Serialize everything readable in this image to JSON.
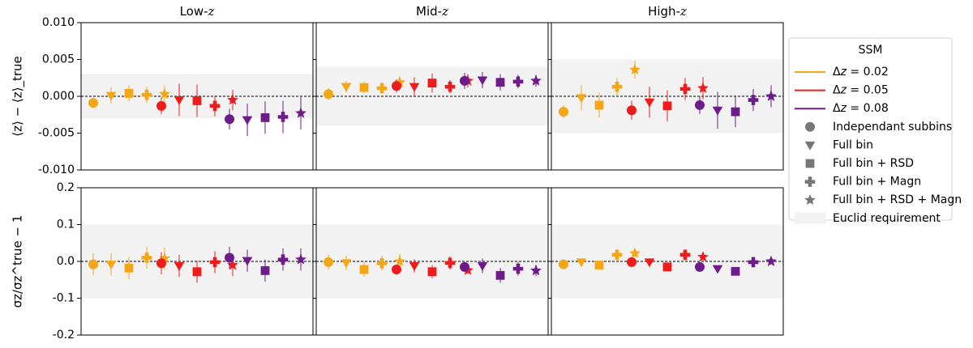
{
  "chart_data": {
    "type": "scatter",
    "panels": [
      {
        "column_title": "Low-z",
        "row": "mean"
      },
      {
        "column_title": "Mid-z",
        "row": "mean"
      },
      {
        "column_title": "High-z",
        "row": "mean"
      },
      {
        "column_title": "Low-z",
        "row": "sigma"
      },
      {
        "column_title": "Mid-z",
        "row": "sigma"
      },
      {
        "column_title": "High-z",
        "row": "sigma"
      }
    ],
    "column_titles": [
      "Low-z",
      "Mid-z",
      "High-z"
    ],
    "rows": [
      {
        "key": "mean",
        "ylabel": "⟨z⟩ − ⟨z⟩_true",
        "ylim": [
          -0.01,
          0.01
        ],
        "yticks": [
          "0.010",
          "0.005",
          "0.000",
          "-0.005",
          "-0.010"
        ],
        "ytick_values": [
          0.01,
          0.005,
          0.0,
          -0.005,
          -0.01
        ],
        "requirement": [
          [
            -0.003,
            0.003
          ],
          [
            -0.004,
            0.004
          ],
          [
            -0.005,
            0.005
          ]
        ]
      },
      {
        "key": "sigma",
        "ylabel": "σz/σz^true − 1",
        "ylim": [
          -0.2,
          0.2
        ],
        "yticks": [
          "0.2",
          "0.1",
          "0.0",
          "-0.1",
          "-0.2"
        ],
        "ytick_values": [
          0.2,
          0.1,
          0.0,
          -0.1,
          -0.2
        ],
        "requirement": [
          [
            -0.1,
            0.1
          ],
          [
            -0.1,
            0.1
          ],
          [
            -0.1,
            0.1
          ]
        ]
      }
    ],
    "methods": [
      "Independant subbins",
      "Full bin",
      "Full bin + RSD",
      "Full bin + Magn",
      "Full bin + RSD + Magn"
    ],
    "series": [
      {
        "name": "Δz = 0.02",
        "color": "#f5a615",
        "mean": [
          [
            [
              -0.0009,
              0.0007
            ],
            [
              0.0001,
              0.0011
            ],
            [
              0.0004,
              0.0011
            ],
            [
              0.0002,
              0.0011
            ],
            [
              0.0003,
              0.0011
            ]
          ],
          [
            [
              0.0003,
              0.0008
            ],
            [
              0.0013,
              0.0008
            ],
            [
              0.0012,
              0.0008
            ],
            [
              0.0011,
              0.0008
            ],
            [
              0.0019,
              0.0008
            ]
          ],
          [
            [
              -0.0021,
              0.0009
            ],
            [
              -0.0002,
              0.0017
            ],
            [
              -0.0012,
              0.0017
            ],
            [
              0.0013,
              0.0012
            ],
            [
              0.0036,
              0.0012
            ]
          ]
        ],
        "sigma": [
          [
            [
              -0.008,
              0.03
            ],
            [
              -0.008,
              0.03
            ],
            [
              -0.018,
              0.03
            ],
            [
              0.01,
              0.03
            ],
            [
              0.008,
              0.03
            ]
          ],
          [
            [
              -0.002,
              0.02
            ],
            [
              -0.004,
              0.02
            ],
            [
              -0.022,
              0.02
            ],
            [
              -0.005,
              0.02
            ],
            [
              0.0,
              0.02
            ]
          ],
          [
            [
              -0.008,
              0.008
            ],
            [
              -0.002,
              0.008
            ],
            [
              -0.01,
              0.008
            ],
            [
              0.018,
              0.01
            ],
            [
              0.022,
              0.008
            ]
          ]
        ]
      },
      {
        "name": "Δz = 0.05",
        "color": "#ee1c1c",
        "mean": [
          [
            [
              -0.0013,
              0.0011
            ],
            [
              -0.0005,
              0.0022
            ],
            [
              -0.0006,
              0.0022
            ],
            [
              -0.0013,
              0.0014
            ],
            [
              -0.0005,
              0.0014
            ]
          ],
          [
            [
              0.0014,
              0.0009
            ],
            [
              0.0013,
              0.0013
            ],
            [
              0.0018,
              0.0013
            ],
            [
              0.0013,
              0.0009
            ],
            [
              0.0021,
              0.0009
            ]
          ],
          [
            [
              -0.0019,
              0.0013
            ],
            [
              -0.0008,
              0.0021
            ],
            [
              -0.0013,
              0.0021
            ],
            [
              0.001,
              0.0015
            ],
            [
              0.0011,
              0.0015
            ]
          ]
        ],
        "sigma": [
          [
            [
              -0.005,
              0.03
            ],
            [
              -0.012,
              0.03
            ],
            [
              -0.028,
              0.03
            ],
            [
              -0.002,
              0.03
            ],
            [
              -0.01,
              0.03
            ]
          ],
          [
            [
              -0.022,
              0.008
            ],
            [
              -0.012,
              0.018
            ],
            [
              -0.028,
              0.018
            ],
            [
              -0.004,
              0.018
            ],
            [
              -0.024,
              0.01
            ]
          ],
          [
            [
              -0.002,
              0.005
            ],
            [
              -0.002,
              0.005
            ],
            [
              -0.015,
              0.005
            ],
            [
              0.018,
              0.008
            ],
            [
              0.012,
              0.008
            ]
          ]
        ]
      },
      {
        "name": "Δz = 0.08",
        "color": "#6e1c8a",
        "mean": [
          [
            [
              -0.0031,
              0.0014
            ],
            [
              -0.0032,
              0.0022
            ],
            [
              -0.0029,
              0.0022
            ],
            [
              -0.0028,
              0.0022
            ],
            [
              -0.0023,
              0.0022
            ]
          ],
          [
            [
              0.0021,
              0.0011
            ],
            [
              0.0022,
              0.0011
            ],
            [
              0.0019,
              0.0011
            ],
            [
              0.002,
              0.0009
            ],
            [
              0.0021,
              0.0008
            ]
          ],
          [
            [
              -0.0012,
              0.0012
            ],
            [
              -0.0019,
              0.0025
            ],
            [
              -0.0021,
              0.0021
            ],
            [
              -0.0005,
              0.0015
            ],
            [
              0.0,
              0.0015
            ]
          ]
        ],
        "sigma": [
          [
            [
              0.01,
              0.03
            ],
            [
              0.002,
              0.03
            ],
            [
              -0.025,
              0.03
            ],
            [
              0.005,
              0.03
            ],
            [
              0.005,
              0.03
            ]
          ],
          [
            [
              -0.015,
              0.01
            ],
            [
              -0.012,
              0.02
            ],
            [
              -0.038,
              0.02
            ],
            [
              -0.02,
              0.018
            ],
            [
              -0.025,
              0.015
            ]
          ],
          [
            [
              -0.015,
              0.005
            ],
            [
              -0.02,
              0.005
            ],
            [
              -0.027,
              0.005
            ],
            [
              -0.002,
              0.008
            ],
            [
              0.0,
              0.008
            ]
          ]
        ]
      }
    ],
    "legend": {
      "title": "SSM",
      "position": "right",
      "entries": [
        {
          "label": "Δz = 0.02",
          "kind": "line",
          "color": "#f5a615"
        },
        {
          "label": "Δz = 0.05",
          "kind": "line",
          "color": "#ee1c1c"
        },
        {
          "label": "Δz = 0.08",
          "kind": "line",
          "color": "#6e1c8a"
        },
        {
          "label": "Independant subbins",
          "kind": "marker",
          "marker": "circle"
        },
        {
          "label": "Full bin",
          "kind": "marker",
          "marker": "triangle-down"
        },
        {
          "label": "Full bin + RSD",
          "kind": "marker",
          "marker": "square"
        },
        {
          "label": "Full bin + Magn",
          "kind": "marker",
          "marker": "plus"
        },
        {
          "label": "Full bin + RSD + Magn",
          "kind": "marker",
          "marker": "star"
        },
        {
          "label": "Euclid requirement",
          "kind": "patch",
          "color": "#f2f2f2"
        }
      ]
    },
    "colors": {
      "requirement_band": "#f2f2f2",
      "marker_gray": "#777777",
      "zero_line": "#000000"
    }
  }
}
